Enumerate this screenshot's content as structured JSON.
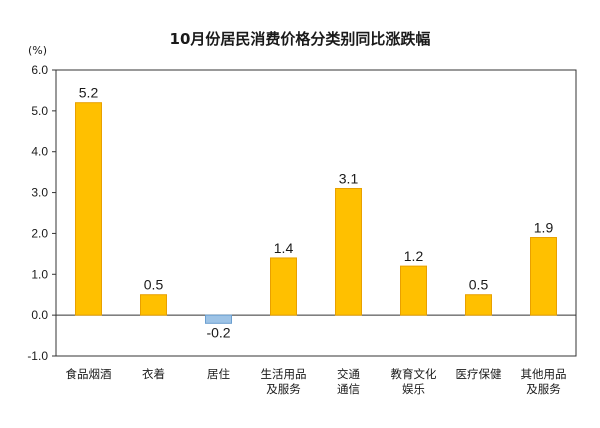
{
  "chart_data": {
    "type": "bar",
    "title": "10月份居民消费价格分类别同比涨跌幅",
    "ylabel": "(%)",
    "xlabel": "",
    "ylim": [
      -1.0,
      6.0
    ],
    "yticks": [
      "6.0",
      "5.0",
      "4.0",
      "3.0",
      "2.0",
      "1.0",
      "0.0",
      "-1.0"
    ],
    "categories": [
      [
        "食品烟酒"
      ],
      [
        "衣着"
      ],
      [
        "居住"
      ],
      [
        "生活用品",
        "及服务"
      ],
      [
        "交通",
        "通信"
      ],
      [
        "教育文化",
        "娱乐"
      ],
      [
        "医疗保健"
      ],
      [
        "其他用品",
        "及服务"
      ]
    ],
    "values": [
      5.2,
      0.5,
      -0.2,
      1.4,
      3.1,
      1.2,
      0.5,
      1.9
    ],
    "value_labels": [
      "5.2",
      "0.5",
      "-0.2",
      "1.4",
      "3.1",
      "1.2",
      "0.5",
      "1.9"
    ],
    "grid": false,
    "colors": {
      "positive": "#FFC000",
      "positive_stroke": "#E8A000",
      "negative": "#9DC3E6",
      "negative_stroke": "#6A9FD0",
      "axis": "#333333"
    }
  }
}
